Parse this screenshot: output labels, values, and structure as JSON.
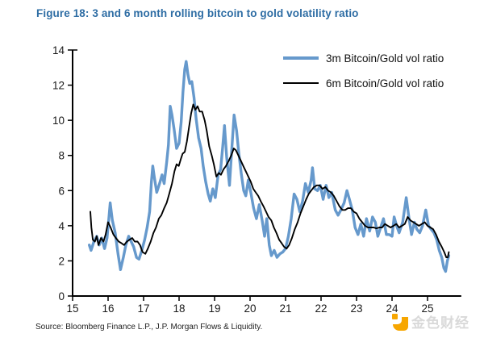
{
  "title": "Figure 18: 3 and 6 month rolling bitcoin to gold volatility ratio",
  "source": "Source: Bloomberg Finance L.P., J.P. Morgan Flows & Liquidity.",
  "watermark": {
    "text": "金色财经"
  },
  "colors": {
    "title": "#2e6da4",
    "axis": "#000000",
    "tick_label": "#1a1a1a",
    "blue_line": "#6699cc",
    "black_line": "#000000",
    "watermark_orange": "#f7a600",
    "watermark_text": "#d9d9d9"
  },
  "chart_data": {
    "type": "line",
    "title": "Figure 18: 3 and 6 month rolling bitcoin to gold volatility ratio",
    "xlabel": "",
    "ylabel": "",
    "grid": false,
    "legend_position": "inside top-right",
    "xlim": [
      15,
      25.95
    ],
    "ylim": [
      0,
      14
    ],
    "x_ticks": [
      15,
      16,
      17,
      18,
      19,
      20,
      21,
      22,
      23,
      24,
      25
    ],
    "y_ticks": [
      0,
      2,
      4,
      6,
      8,
      10,
      12,
      14
    ],
    "series": [
      {
        "name": "3m Bitcoin/Gold vol ratio",
        "color": "#6699cc",
        "width": 3.4,
        "points": [
          [
            15.47,
            2.9
          ],
          [
            15.52,
            2.6
          ],
          [
            15.6,
            3.1
          ],
          [
            15.68,
            3.4
          ],
          [
            15.75,
            2.9
          ],
          [
            15.82,
            3.3
          ],
          [
            15.9,
            2.7
          ],
          [
            15.97,
            3.3
          ],
          [
            16.03,
            4.6
          ],
          [
            16.06,
            5.3
          ],
          [
            16.12,
            4.3
          ],
          [
            16.2,
            3.6
          ],
          [
            16.28,
            2.4
          ],
          [
            16.35,
            1.5
          ],
          [
            16.43,
            2.2
          ],
          [
            16.5,
            2.9
          ],
          [
            16.58,
            3.4
          ],
          [
            16.65,
            3.1
          ],
          [
            16.72,
            2.8
          ],
          [
            16.8,
            2.2
          ],
          [
            16.87,
            2.1
          ],
          [
            16.95,
            2.6
          ],
          [
            17.03,
            3.2
          ],
          [
            17.1,
            3.9
          ],
          [
            17.17,
            4.8
          ],
          [
            17.22,
            6.5
          ],
          [
            17.26,
            7.4
          ],
          [
            17.3,
            6.8
          ],
          [
            17.37,
            5.9
          ],
          [
            17.45,
            6.4
          ],
          [
            17.52,
            6.9
          ],
          [
            17.58,
            6.4
          ],
          [
            17.65,
            7.6
          ],
          [
            17.7,
            8.6
          ],
          [
            17.75,
            10.8
          ],
          [
            17.8,
            10.3
          ],
          [
            17.86,
            9.5
          ],
          [
            17.93,
            8.4
          ],
          [
            18.0,
            8.7
          ],
          [
            18.06,
            9.9
          ],
          [
            18.11,
            11.6
          ],
          [
            18.16,
            12.9
          ],
          [
            18.2,
            13.35
          ],
          [
            18.25,
            12.6
          ],
          [
            18.3,
            12.1
          ],
          [
            18.36,
            12.2
          ],
          [
            18.42,
            11.3
          ],
          [
            18.48,
            10.1
          ],
          [
            18.55,
            9.0
          ],
          [
            18.62,
            8.4
          ],
          [
            18.68,
            7.4
          ],
          [
            18.75,
            6.5
          ],
          [
            18.82,
            5.8
          ],
          [
            18.88,
            5.4
          ],
          [
            18.95,
            6.1
          ],
          [
            19.02,
            5.6
          ],
          [
            19.1,
            6.9
          ],
          [
            19.17,
            7.2
          ],
          [
            19.23,
            8.5
          ],
          [
            19.28,
            9.7
          ],
          [
            19.34,
            7.9
          ],
          [
            19.42,
            6.3
          ],
          [
            19.48,
            8.2
          ],
          [
            19.55,
            10.3
          ],
          [
            19.62,
            9.4
          ],
          [
            19.68,
            8.2
          ],
          [
            19.75,
            7.0
          ],
          [
            19.82,
            6.0
          ],
          [
            19.88,
            5.7
          ],
          [
            19.95,
            6.6
          ],
          [
            20.02,
            5.9
          ],
          [
            20.1,
            5.0
          ],
          [
            20.18,
            4.4
          ],
          [
            20.26,
            5.2
          ],
          [
            20.34,
            4.3
          ],
          [
            20.41,
            3.4
          ],
          [
            20.47,
            4.4
          ],
          [
            20.54,
            2.9
          ],
          [
            20.6,
            2.3
          ],
          [
            20.68,
            2.6
          ],
          [
            20.76,
            2.2
          ],
          [
            20.84,
            2.4
          ],
          [
            20.92,
            2.5
          ],
          [
            21.0,
            2.7
          ],
          [
            21.08,
            3.4
          ],
          [
            21.16,
            4.4
          ],
          [
            21.24,
            5.8
          ],
          [
            21.32,
            5.5
          ],
          [
            21.4,
            4.8
          ],
          [
            21.48,
            5.4
          ],
          [
            21.56,
            6.4
          ],
          [
            21.64,
            5.9
          ],
          [
            21.72,
            6.6
          ],
          [
            21.76,
            7.3
          ],
          [
            21.82,
            6.1
          ],
          [
            21.9,
            6.0
          ],
          [
            21.98,
            6.3
          ],
          [
            22.06,
            5.5
          ],
          [
            22.14,
            6.3
          ],
          [
            22.22,
            5.6
          ],
          [
            22.3,
            5.9
          ],
          [
            22.4,
            4.9
          ],
          [
            22.48,
            4.6
          ],
          [
            22.56,
            4.9
          ],
          [
            22.65,
            5.3
          ],
          [
            22.73,
            6.0
          ],
          [
            22.8,
            5.5
          ],
          [
            22.88,
            4.9
          ],
          [
            22.96,
            3.9
          ],
          [
            23.04,
            3.5
          ],
          [
            23.12,
            4.1
          ],
          [
            23.2,
            3.4
          ],
          [
            23.28,
            4.4
          ],
          [
            23.37,
            3.7
          ],
          [
            23.45,
            4.5
          ],
          [
            23.53,
            4.2
          ],
          [
            23.6,
            3.4
          ],
          [
            23.68,
            3.9
          ],
          [
            23.76,
            4.4
          ],
          [
            23.84,
            3.5
          ],
          [
            23.92,
            3.5
          ],
          [
            24.0,
            3.4
          ],
          [
            24.06,
            4.5
          ],
          [
            24.13,
            4.0
          ],
          [
            24.2,
            3.6
          ],
          [
            24.3,
            4.2
          ],
          [
            24.4,
            5.6
          ],
          [
            24.48,
            4.4
          ],
          [
            24.55,
            3.5
          ],
          [
            24.63,
            4.2
          ],
          [
            24.7,
            3.8
          ],
          [
            24.78,
            3.6
          ],
          [
            24.86,
            4.0
          ],
          [
            24.95,
            4.9
          ],
          [
            25.03,
            4.0
          ],
          [
            25.1,
            3.8
          ],
          [
            25.18,
            3.6
          ],
          [
            25.26,
            3.2
          ],
          [
            25.33,
            2.6
          ],
          [
            25.4,
            2.2
          ],
          [
            25.46,
            1.6
          ],
          [
            25.51,
            1.4
          ],
          [
            25.56,
            2.0
          ],
          [
            25.6,
            2.3
          ]
        ]
      },
      {
        "name": "6m Bitcoin/Gold vol ratio",
        "color": "#000000",
        "width": 1.9,
        "points": [
          [
            15.5,
            4.8
          ],
          [
            15.53,
            3.9
          ],
          [
            15.57,
            3.2
          ],
          [
            15.63,
            3.1
          ],
          [
            15.68,
            3.4
          ],
          [
            15.73,
            2.9
          ],
          [
            15.8,
            3.3
          ],
          [
            15.87,
            3.1
          ],
          [
            15.93,
            3.5
          ],
          [
            16.0,
            4.2
          ],
          [
            16.07,
            3.9
          ],
          [
            16.15,
            3.5
          ],
          [
            16.22,
            3.3
          ],
          [
            16.3,
            3.1
          ],
          [
            16.38,
            3.0
          ],
          [
            16.45,
            2.9
          ],
          [
            16.53,
            3.1
          ],
          [
            16.6,
            3.2
          ],
          [
            16.68,
            3.3
          ],
          [
            16.75,
            3.1
          ],
          [
            16.83,
            3.1
          ],
          [
            16.9,
            2.9
          ],
          [
            16.97,
            2.5
          ],
          [
            17.05,
            2.4
          ],
          [
            17.12,
            2.7
          ],
          [
            17.2,
            3.1
          ],
          [
            17.28,
            3.6
          ],
          [
            17.35,
            3.9
          ],
          [
            17.43,
            4.4
          ],
          [
            17.5,
            4.6
          ],
          [
            17.58,
            5.0
          ],
          [
            17.65,
            5.3
          ],
          [
            17.72,
            5.8
          ],
          [
            17.8,
            6.4
          ],
          [
            17.87,
            7.1
          ],
          [
            17.93,
            7.5
          ],
          [
            17.99,
            7.4
          ],
          [
            18.05,
            7.8
          ],
          [
            18.1,
            8.1
          ],
          [
            18.16,
            8.2
          ],
          [
            18.22,
            8.8
          ],
          [
            18.28,
            9.6
          ],
          [
            18.34,
            10.4
          ],
          [
            18.4,
            10.9
          ],
          [
            18.46,
            10.6
          ],
          [
            18.52,
            10.8
          ],
          [
            18.58,
            10.5
          ],
          [
            18.65,
            10.5
          ],
          [
            18.72,
            10.0
          ],
          [
            18.78,
            9.4
          ],
          [
            18.85,
            8.5
          ],
          [
            18.92,
            8.0
          ],
          [
            18.98,
            7.5
          ],
          [
            19.05,
            6.8
          ],
          [
            19.12,
            7.0
          ],
          [
            19.18,
            6.9
          ],
          [
            19.25,
            7.2
          ],
          [
            19.32,
            7.4
          ],
          [
            19.4,
            7.7
          ],
          [
            19.47,
            8.0
          ],
          [
            19.54,
            8.4
          ],
          [
            19.6,
            8.3
          ],
          [
            19.67,
            8.0
          ],
          [
            19.74,
            7.7
          ],
          [
            19.81,
            7.4
          ],
          [
            19.88,
            7.1
          ],
          [
            19.95,
            6.8
          ],
          [
            20.02,
            6.5
          ],
          [
            20.09,
            6.1
          ],
          [
            20.16,
            5.9
          ],
          [
            20.23,
            5.7
          ],
          [
            20.3,
            5.4
          ],
          [
            20.38,
            5.1
          ],
          [
            20.45,
            4.8
          ],
          [
            20.52,
            4.5
          ],
          [
            20.6,
            4.3
          ],
          [
            20.67,
            3.9
          ],
          [
            20.74,
            3.6
          ],
          [
            20.82,
            3.2
          ],
          [
            20.89,
            3.0
          ],
          [
            20.96,
            2.8
          ],
          [
            21.03,
            2.7
          ],
          [
            21.1,
            2.9
          ],
          [
            21.18,
            3.3
          ],
          [
            21.26,
            3.8
          ],
          [
            21.34,
            4.2
          ],
          [
            21.42,
            4.7
          ],
          [
            21.5,
            5.1
          ],
          [
            21.58,
            5.5
          ],
          [
            21.65,
            5.8
          ],
          [
            21.72,
            6.0
          ],
          [
            21.8,
            6.2
          ],
          [
            21.88,
            6.3
          ],
          [
            21.96,
            6.3
          ],
          [
            22.04,
            6.1
          ],
          [
            22.12,
            6.2
          ],
          [
            22.2,
            6.0
          ],
          [
            22.28,
            5.9
          ],
          [
            22.36,
            5.7
          ],
          [
            22.44,
            5.4
          ],
          [
            22.52,
            5.1
          ],
          [
            22.6,
            4.9
          ],
          [
            22.68,
            4.9
          ],
          [
            22.76,
            5.0
          ],
          [
            22.84,
            5.0
          ],
          [
            22.92,
            4.8
          ],
          [
            23.0,
            4.7
          ],
          [
            23.08,
            4.4
          ],
          [
            23.16,
            4.2
          ],
          [
            23.24,
            4.0
          ],
          [
            23.32,
            3.9
          ],
          [
            23.4,
            3.9
          ],
          [
            23.48,
            3.9
          ],
          [
            23.56,
            3.85
          ],
          [
            23.64,
            3.9
          ],
          [
            23.72,
            3.9
          ],
          [
            23.8,
            4.1
          ],
          [
            23.88,
            4.0
          ],
          [
            23.96,
            3.9
          ],
          [
            24.04,
            4.0
          ],
          [
            24.12,
            4.1
          ],
          [
            24.2,
            3.9
          ],
          [
            24.28,
            4.0
          ],
          [
            24.36,
            4.1
          ],
          [
            24.44,
            4.5
          ],
          [
            24.52,
            4.3
          ],
          [
            24.6,
            4.2
          ],
          [
            24.68,
            4.1
          ],
          [
            24.76,
            4.0
          ],
          [
            24.84,
            4.1
          ],
          [
            24.92,
            4.2
          ],
          [
            25.0,
            4.0
          ],
          [
            25.08,
            3.9
          ],
          [
            25.16,
            3.8
          ],
          [
            25.24,
            3.5
          ],
          [
            25.32,
            3.1
          ],
          [
            25.4,
            2.8
          ],
          [
            25.47,
            2.5
          ],
          [
            25.53,
            2.2
          ],
          [
            25.57,
            2.2
          ],
          [
            25.6,
            2.5
          ]
        ]
      }
    ]
  }
}
